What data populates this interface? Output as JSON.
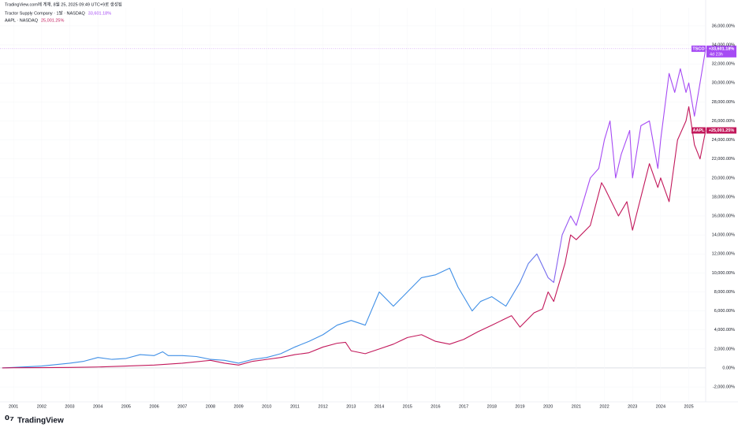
{
  "chart_data": {
    "type": "line",
    "source": "TradingView.com에 게재, 8월 25, 2025 09:49 UTC+9로 생성됨",
    "watermark": "TradingView",
    "xlim": [
      2000.52,
      2025.6
    ],
    "xticks": [
      2001,
      2002,
      2003,
      2004,
      2005,
      2006,
      2007,
      2008,
      2009,
      2010,
      2011,
      2012,
      2013,
      2014,
      2015,
      2016,
      2017,
      2018,
      2019,
      2020,
      2021,
      2022,
      2023,
      2024,
      2025
    ],
    "ylim": [
      -3570,
      37900
    ],
    "yticks": [
      {
        "value": -2000,
        "label": "-2,000.00%"
      },
      {
        "value": 0,
        "label": "0.00%"
      },
      {
        "value": 2000,
        "label": "2,000.00%"
      },
      {
        "value": 4000,
        "label": "4,000.00%"
      },
      {
        "value": 6000,
        "label": "6,000.00%"
      },
      {
        "value": 8000,
        "label": "8,000.00%"
      },
      {
        "value": 10000,
        "label": "10,000.00%"
      },
      {
        "value": 12000,
        "label": "12,000.00%"
      },
      {
        "value": 14000,
        "label": "14,000.00%"
      },
      {
        "value": 16000,
        "label": "16,000.00%"
      },
      {
        "value": 18000,
        "label": "18,000.00%"
      },
      {
        "value": 20000,
        "label": "20,000.00%"
      },
      {
        "value": 22000,
        "label": "22,000.00%"
      },
      {
        "value": 24000,
        "label": "24,000.00%"
      },
      {
        "value": 26000,
        "label": "26,000.00%"
      },
      {
        "value": 28000,
        "label": "28,000.00%"
      },
      {
        "value": 30000,
        "label": "30,000.00%"
      },
      {
        "value": 32000,
        "label": "32,000.00%"
      },
      {
        "value": 34000,
        "label": "34,000.00%"
      },
      {
        "value": 36000,
        "label": "36,000.00%"
      }
    ],
    "grid": true,
    "series": [
      {
        "name": "Tractor Supply Company · 1달 · NASDAQ",
        "ticker": "TSCO",
        "color": "#a64bf4",
        "color_start": "#3f8fe6",
        "change": 33601.18,
        "change_label": "33,601.18%",
        "badge_label": "+33,601.18%",
        "countdown": "4d 23h",
        "x": [
          2000.6,
          2001,
          2002,
          2003,
          2003.5,
          2004,
          2004.5,
          2005,
          2005.5,
          2006,
          2006.3,
          2006.5,
          2007,
          2007.5,
          2008,
          2008.5,
          2009,
          2009.5,
          2010,
          2010.5,
          2011,
          2011.5,
          2012,
          2012.5,
          2013,
          2013.5,
          2014,
          2014.5,
          2015,
          2015.5,
          2016,
          2016.5,
          2016.8,
          2017,
          2017.3,
          2017.6,
          2018,
          2018.5,
          2019,
          2019.3,
          2019.6,
          2020,
          2020.2,
          2020.5,
          2020.8,
          2021,
          2021.5,
          2021.8,
          2022,
          2022.2,
          2022.4,
          2022.6,
          2022.9,
          2023,
          2023.3,
          2023.6,
          2023.9,
          2024,
          2024.3,
          2024.5,
          2024.7,
          2024.9,
          2025,
          2025.2,
          2025.4,
          2025.6
        ],
        "values": [
          0,
          50,
          200,
          500,
          700,
          1100,
          900,
          1000,
          1400,
          1300,
          1700,
          1300,
          1300,
          1200,
          900,
          800,
          500,
          900,
          1100,
          1500,
          2200,
          2800,
          3500,
          4500,
          5000,
          4500,
          8000,
          6500,
          8000,
          9500,
          9800,
          10500,
          8500,
          7500,
          6000,
          7000,
          7500,
          6500,
          9000,
          11000,
          12000,
          9500,
          9000,
          14000,
          16000,
          15000,
          20000,
          21000,
          24000,
          26000,
          20000,
          22500,
          25000,
          20000,
          25500,
          26000,
          21000,
          24000,
          31000,
          29000,
          31500,
          29000,
          30000,
          26500,
          30000,
          33601.18
        ]
      },
      {
        "name": "AAPL · NASDAQ",
        "ticker": "AAPL",
        "color": "#c2185b",
        "change": 25001.25,
        "change_label": "25,001.25%",
        "badge_label": "+25,001.25%",
        "x": [
          2000.6,
          2001,
          2002,
          2003,
          2004,
          2005,
          2006,
          2007,
          2008,
          2008.5,
          2009,
          2009.5,
          2010,
          2010.5,
          2011,
          2011.5,
          2012,
          2012.5,
          2012.8,
          2013,
          2013.5,
          2014,
          2014.5,
          2015,
          2015.5,
          2016,
          2016.5,
          2017,
          2017.5,
          2018,
          2018.7,
          2019,
          2019.5,
          2019.8,
          2020,
          2020.2,
          2020.6,
          2020.8,
          2021,
          2021.5,
          2021.9,
          2022,
          2022.5,
          2022.8,
          2023,
          2023.3,
          2023.6,
          2023.9,
          2024,
          2024.3,
          2024.6,
          2024.9,
          2025,
          2025.2,
          2025.4,
          2025.6
        ],
        "values": [
          0,
          20,
          30,
          50,
          100,
          200,
          300,
          500,
          800,
          500,
          300,
          700,
          900,
          1100,
          1400,
          1600,
          2200,
          2600,
          2700,
          1800,
          1500,
          2000,
          2500,
          3200,
          3500,
          2800,
          2500,
          3000,
          3800,
          4500,
          5500,
          4300,
          5800,
          6200,
          8000,
          7000,
          11000,
          14000,
          13500,
          15000,
          19500,
          19000,
          16000,
          17500,
          14500,
          18000,
          21500,
          19000,
          20000,
          17500,
          24000,
          26000,
          27500,
          23500,
          22000,
          25001.25
        ]
      }
    ]
  }
}
